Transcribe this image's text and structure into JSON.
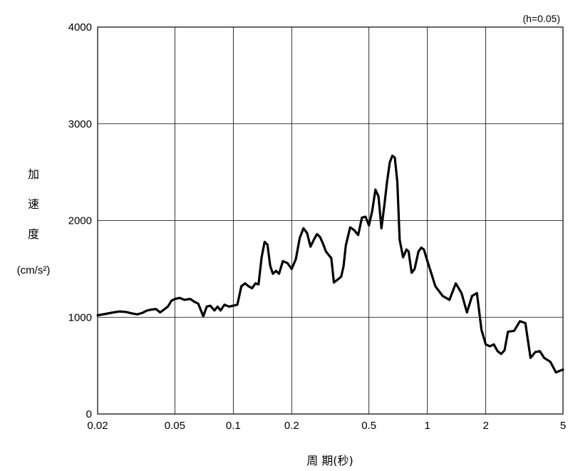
{
  "chart_data": {
    "type": "line",
    "annotation": "(h=0.05)",
    "xlabel": "周 期(秒)",
    "ylabel_chars": [
      "加",
      "速",
      "度"
    ],
    "ylabel_unit": "(cm/s²)",
    "x_scale": "log",
    "xlim": [
      0.02,
      5
    ],
    "ylim": [
      0,
      4000
    ],
    "x_ticks": [
      0.02,
      0.05,
      0.1,
      0.2,
      0.5,
      1,
      2,
      5
    ],
    "x_tick_labels": [
      "0.02",
      "0.05",
      "0.1",
      "0.2",
      "0.5",
      "1",
      "2",
      "5"
    ],
    "y_ticks": [
      0,
      1000,
      2000,
      3000,
      4000
    ],
    "y_tick_labels": [
      "0",
      "1000",
      "2000",
      "3000",
      "4000"
    ],
    "grid": true,
    "series": [
      {
        "color": "#000000",
        "x": [
          0.02,
          0.022,
          0.024,
          0.026,
          0.028,
          0.03,
          0.032,
          0.034,
          0.036,
          0.038,
          0.04,
          0.042,
          0.044,
          0.046,
          0.048,
          0.05,
          0.053,
          0.056,
          0.06,
          0.063,
          0.066,
          0.07,
          0.073,
          0.076,
          0.08,
          0.083,
          0.086,
          0.09,
          0.095,
          0.1,
          0.105,
          0.11,
          0.115,
          0.12,
          0.125,
          0.13,
          0.135,
          0.14,
          0.145,
          0.15,
          0.155,
          0.16,
          0.166,
          0.172,
          0.18,
          0.19,
          0.2,
          0.21,
          0.22,
          0.23,
          0.24,
          0.25,
          0.26,
          0.27,
          0.28,
          0.29,
          0.3,
          0.32,
          0.33,
          0.34,
          0.35,
          0.36,
          0.37,
          0.38,
          0.4,
          0.42,
          0.44,
          0.46,
          0.48,
          0.5,
          0.52,
          0.54,
          0.56,
          0.58,
          0.6,
          0.62,
          0.64,
          0.66,
          0.68,
          0.7,
          0.72,
          0.75,
          0.78,
          0.8,
          0.83,
          0.86,
          0.9,
          0.93,
          0.96,
          1.0,
          1.05,
          1.1,
          1.2,
          1.3,
          1.4,
          1.5,
          1.6,
          1.7,
          1.8,
          1.9,
          2.0,
          2.1,
          2.2,
          2.3,
          2.4,
          2.5,
          2.6,
          2.8,
          3.0,
          3.2,
          3.4,
          3.6,
          3.8,
          4.0,
          4.3,
          4.6,
          5.0
        ],
        "y": [
          1020,
          1035,
          1050,
          1060,
          1055,
          1040,
          1030,
          1045,
          1070,
          1080,
          1085,
          1050,
          1080,
          1110,
          1170,
          1190,
          1200,
          1180,
          1190,
          1160,
          1140,
          1010,
          1110,
          1120,
          1070,
          1110,
          1070,
          1130,
          1110,
          1120,
          1130,
          1320,
          1350,
          1320,
          1300,
          1350,
          1340,
          1620,
          1780,
          1750,
          1530,
          1450,
          1480,
          1450,
          1580,
          1560,
          1500,
          1600,
          1820,
          1920,
          1870,
          1730,
          1800,
          1860,
          1830,
          1760,
          1680,
          1610,
          1360,
          1380,
          1400,
          1420,
          1530,
          1740,
          1930,
          1900,
          1850,
          2030,
          2040,
          1950,
          2100,
          2320,
          2250,
          1920,
          2150,
          2400,
          2600,
          2670,
          2650,
          2400,
          1800,
          1620,
          1700,
          1680,
          1460,
          1500,
          1680,
          1720,
          1700,
          1580,
          1450,
          1320,
          1220,
          1180,
          1350,
          1250,
          1050,
          1220,
          1250,
          870,
          720,
          700,
          720,
          650,
          620,
          660,
          850,
          860,
          960,
          940,
          580,
          640,
          650,
          580,
          540,
          430,
          460
        ]
      }
    ]
  }
}
